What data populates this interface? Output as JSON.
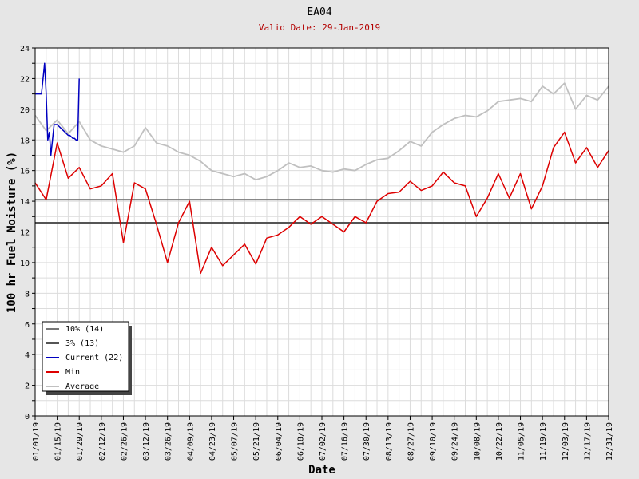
{
  "chart_data": {
    "type": "line",
    "title": "EA04",
    "subtitle": "Valid Date: 29-Jan-2019",
    "xlabel": "Date",
    "ylabel": "100 hr Fuel Moisture (%)",
    "ylim": [
      0,
      24
    ],
    "y_ticks": [
      "0",
      "2",
      "4",
      "6",
      "8",
      "10",
      "12",
      "14",
      "16",
      "18",
      "20",
      "22",
      "24"
    ],
    "x_tick_labels": [
      "01/01/19",
      "01/15/19",
      "01/29/19",
      "02/12/19",
      "02/26/19",
      "03/12/19",
      "03/26/19",
      "04/09/19",
      "04/23/19",
      "05/07/19",
      "05/21/19",
      "06/04/19",
      "06/18/19",
      "07/02/19",
      "07/16/19",
      "07/30/19",
      "08/13/19",
      "08/27/19",
      "09/10/19",
      "09/24/19",
      "10/08/19",
      "10/22/19",
      "11/05/19",
      "11/19/19",
      "12/03/19",
      "12/17/19",
      "12/31/19"
    ],
    "grid": true,
    "legend_position": "bottom-left",
    "thresholds": [
      {
        "name": "10% (14)",
        "value": 14.1,
        "color": "#777777"
      },
      {
        "name": "3% (13)",
        "value": 12.6,
        "color": "#555555"
      }
    ],
    "series": [
      {
        "name": "Current (22)",
        "color": "#0000c0",
        "x": [
          "2019-01-01",
          "2019-01-02",
          "2019-01-03",
          "2019-01-04",
          "2019-01-05",
          "2019-01-06",
          "2019-01-07",
          "2019-01-08",
          "2019-01-09",
          "2019-01-10",
          "2019-01-11",
          "2019-01-12",
          "2019-01-13",
          "2019-01-14",
          "2019-01-15",
          "2019-01-16",
          "2019-01-17",
          "2019-01-18",
          "2019-01-19",
          "2019-01-20",
          "2019-01-21",
          "2019-01-22",
          "2019-01-23",
          "2019-01-24",
          "2019-01-25",
          "2019-01-26",
          "2019-01-27",
          "2019-01-28",
          "2019-01-29"
        ],
        "values": [
          21,
          21,
          21,
          21,
          21,
          22,
          23,
          21,
          18,
          18.5,
          17,
          18,
          19,
          19,
          19,
          18.9,
          18.8,
          18.7,
          18.6,
          18.5,
          18.4,
          18.3,
          18.3,
          18.2,
          18.1,
          18.1,
          18,
          18,
          22
        ]
      },
      {
        "name": "Min",
        "color": "#dd0000",
        "x": [
          "2019-01-01",
          "2019-01-08",
          "2019-01-15",
          "2019-01-22",
          "2019-01-29",
          "2019-02-05",
          "2019-02-12",
          "2019-02-19",
          "2019-02-26",
          "2019-03-05",
          "2019-03-12",
          "2019-03-19",
          "2019-03-26",
          "2019-04-02",
          "2019-04-09",
          "2019-04-16",
          "2019-04-23",
          "2019-04-30",
          "2019-05-07",
          "2019-05-14",
          "2019-05-21",
          "2019-05-28",
          "2019-06-04",
          "2019-06-11",
          "2019-06-18",
          "2019-06-25",
          "2019-07-02",
          "2019-07-09",
          "2019-07-16",
          "2019-07-23",
          "2019-07-30",
          "2019-08-06",
          "2019-08-13",
          "2019-08-20",
          "2019-08-27",
          "2019-09-03",
          "2019-09-10",
          "2019-09-17",
          "2019-09-24",
          "2019-10-01",
          "2019-10-08",
          "2019-10-15",
          "2019-10-22",
          "2019-10-29",
          "2019-11-05",
          "2019-11-12",
          "2019-11-19",
          "2019-11-26",
          "2019-12-03",
          "2019-12-10",
          "2019-12-17",
          "2019-12-24",
          "2019-12-31"
        ],
        "values": [
          15.2,
          14.1,
          17.8,
          15.5,
          16.2,
          14.8,
          15.0,
          15.8,
          11.3,
          15.2,
          14.8,
          12.5,
          10.0,
          12.6,
          14.0,
          9.3,
          11.0,
          9.8,
          10.5,
          11.2,
          9.9,
          11.6,
          11.8,
          12.3,
          13.0,
          12.5,
          13.0,
          12.5,
          12.0,
          13.0,
          12.6,
          14.0,
          14.5,
          14.6,
          15.3,
          14.7,
          15.0,
          15.9,
          15.2,
          15.0,
          13.0,
          14.2,
          15.8,
          14.2,
          15.8,
          13.5,
          15.0,
          17.5,
          18.5,
          16.5,
          17.5,
          16.2,
          17.3
        ]
      },
      {
        "name": "Average",
        "color": "#c0c0c0",
        "x": [
          "2019-01-01",
          "2019-01-08",
          "2019-01-15",
          "2019-01-22",
          "2019-01-29",
          "2019-02-05",
          "2019-02-12",
          "2019-02-19",
          "2019-02-26",
          "2019-03-05",
          "2019-03-12",
          "2019-03-19",
          "2019-03-26",
          "2019-04-02",
          "2019-04-09",
          "2019-04-16",
          "2019-04-23",
          "2019-04-30",
          "2019-05-07",
          "2019-05-14",
          "2019-05-21",
          "2019-05-28",
          "2019-06-04",
          "2019-06-11",
          "2019-06-18",
          "2019-06-25",
          "2019-07-02",
          "2019-07-09",
          "2019-07-16",
          "2019-07-23",
          "2019-07-30",
          "2019-08-06",
          "2019-08-13",
          "2019-08-20",
          "2019-08-27",
          "2019-09-03",
          "2019-09-10",
          "2019-09-17",
          "2019-09-24",
          "2019-10-01",
          "2019-10-08",
          "2019-10-15",
          "2019-10-22",
          "2019-10-29",
          "2019-11-05",
          "2019-11-12",
          "2019-11-19",
          "2019-11-26",
          "2019-12-03",
          "2019-12-10",
          "2019-12-17",
          "2019-12-24",
          "2019-12-31"
        ],
        "values": [
          19.6,
          18.6,
          19.3,
          18.4,
          19.2,
          18.0,
          17.6,
          17.4,
          17.2,
          17.6,
          18.8,
          17.8,
          17.6,
          17.2,
          17.0,
          16.6,
          16.0,
          15.8,
          15.6,
          15.8,
          15.4,
          15.6,
          16.0,
          16.5,
          16.2,
          16.3,
          16.0,
          15.9,
          16.1,
          16.0,
          16.4,
          16.7,
          16.8,
          17.3,
          17.9,
          17.6,
          18.5,
          19.0,
          19.4,
          19.6,
          19.5,
          19.9,
          20.5,
          20.6,
          20.7,
          20.5,
          21.5,
          21.0,
          21.7,
          20.0,
          20.9,
          20.6,
          21.5
        ]
      }
    ]
  }
}
